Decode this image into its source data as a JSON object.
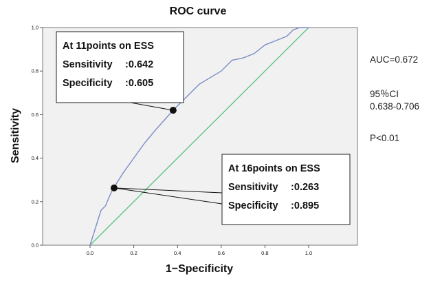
{
  "chart_data": {
    "type": "line",
    "title": "ROC curve",
    "xlabel": "1−Specificity",
    "ylabel": "Sensitivity",
    "xlim": [
      0.0,
      1.0
    ],
    "ylim": [
      0.0,
      1.0
    ],
    "xticks": [
      "0.0",
      "0.2",
      "0.4",
      "0.6",
      "0.8",
      "1.0"
    ],
    "yticks": [
      "0.0",
      "0.2",
      "0.4",
      "0.6",
      "0.8",
      "1.0"
    ],
    "grid": false,
    "series": [
      {
        "color": "#7b8cc8",
        "x": [
          0.0,
          0.05,
          0.07,
          0.1,
          0.15,
          0.2,
          0.25,
          0.3,
          0.38,
          0.45,
          0.5,
          0.55,
          0.6,
          0.65,
          0.7,
          0.75,
          0.8,
          0.85,
          0.9,
          0.93,
          0.96,
          1.0
        ],
        "y": [
          0.0,
          0.16,
          0.18,
          0.25,
          0.33,
          0.4,
          0.47,
          0.53,
          0.62,
          0.69,
          0.74,
          0.77,
          0.8,
          0.85,
          0.86,
          0.88,
          0.92,
          0.94,
          0.96,
          0.99,
          1.0,
          1.0
        ]
      },
      {
        "color": "#5ec487",
        "x": [
          0.0,
          1.0
        ],
        "y": [
          0.0,
          1.0
        ]
      }
    ],
    "annotations": [
      {
        "point": [
          0.38,
          0.62
        ],
        "lines": [
          "At 11points on ESS",
          "Sensitivity 　:0.642",
          "Specificity 　:0.605"
        ]
      },
      {
        "point": [
          0.11,
          0.263
        ],
        "lines": [
          "At 16points on ESS",
          "Sensitivity 　:0.263",
          "Specificity 　:0.895"
        ]
      }
    ]
  },
  "stats": {
    "auc": "AUC=0.672",
    "ci_label": "95％CI",
    "ci_range": "0.638-0.706",
    "p_value": "P<0.01"
  }
}
